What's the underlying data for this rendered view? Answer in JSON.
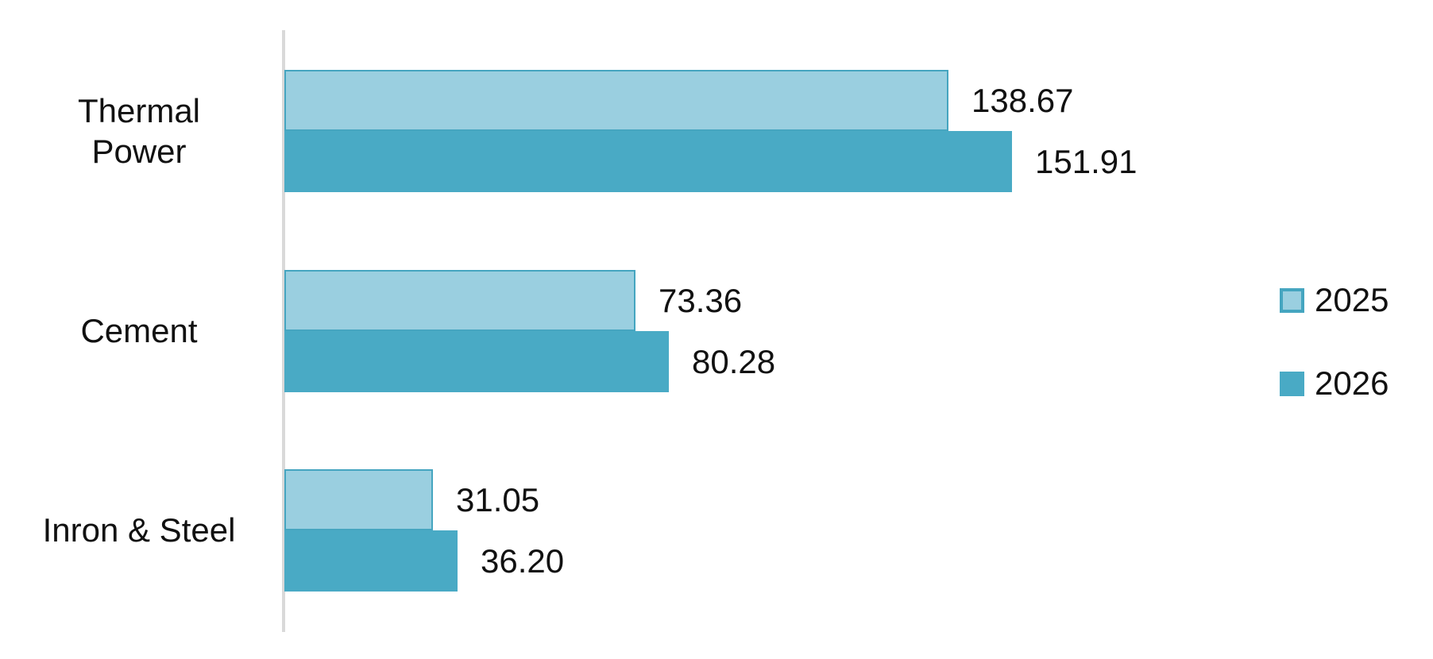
{
  "chart_data": {
    "type": "bar",
    "orientation": "horizontal",
    "title": "",
    "xlabel": "",
    "ylabel": "",
    "xlim": [
      0,
      160
    ],
    "grid": false,
    "legend_position": "right",
    "axis_color": "#D9D9D9",
    "text_color": "#111111",
    "background_color": "#FFFFFF",
    "categories": [
      "Thermal Power",
      "Cement",
      "Inron & Steel"
    ],
    "categories_display": [
      "Thermal\nPower",
      "Cement",
      "Inron & Steel"
    ],
    "series": [
      {
        "name": "2025",
        "values": [
          138.67,
          73.36,
          31.05
        ],
        "value_labels": [
          "138.67",
          "73.36",
          "31.05"
        ],
        "fill": "#9ACFE0",
        "border": "#45A5C0"
      },
      {
        "name": "2026",
        "values": [
          151.91,
          80.28,
          36.2
        ],
        "value_labels": [
          "151.91",
          "80.28",
          "36.20"
        ],
        "fill": "#49AAC5",
        "border": "#49AAC5"
      }
    ]
  }
}
